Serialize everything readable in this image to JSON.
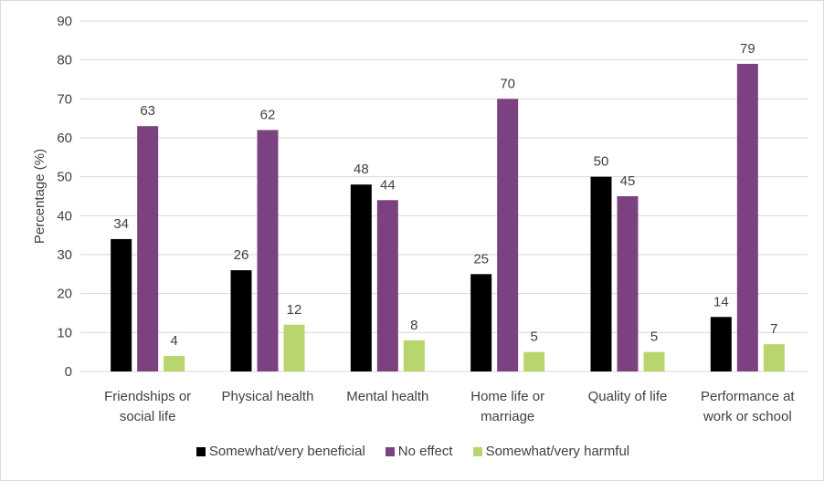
{
  "chart_data": {
    "type": "bar",
    "title": "",
    "xlabel": "",
    "ylabel": "Percentage (%)",
    "ylim": [
      0,
      90
    ],
    "yticks": [
      0,
      10,
      20,
      30,
      40,
      50,
      60,
      70,
      80,
      90
    ],
    "grid": true,
    "legend_position": "bottom",
    "categories": [
      [
        "Friendships or",
        "social life"
      ],
      [
        "Physical health"
      ],
      [
        "Mental health"
      ],
      [
        "Home life or",
        "marriage"
      ],
      [
        "Quality of life"
      ],
      [
        "Performance at",
        "work or school"
      ]
    ],
    "series": [
      {
        "name": "Somewhat/very beneficial",
        "color": "#000000",
        "values": [
          34,
          26,
          48,
          25,
          50,
          14
        ]
      },
      {
        "name": "No effect",
        "color": "#7b4180",
        "values": [
          63,
          62,
          44,
          70,
          45,
          79
        ]
      },
      {
        "name": "Somewhat/very harmful",
        "color": "#b8d56e",
        "values": [
          4,
          12,
          8,
          5,
          5,
          7
        ]
      }
    ]
  }
}
